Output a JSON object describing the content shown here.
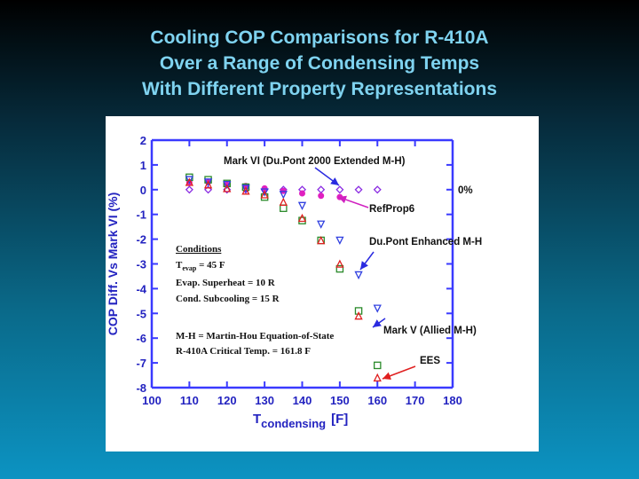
{
  "slide": {
    "title_lines": [
      "Cooling COP Comparisons for R-410A",
      "Over a Range of Condensing Temps",
      "With Different Property Representations"
    ]
  },
  "colors": {
    "title": "#7fd3f0",
    "axis": "#3a3aff",
    "tick_label": "#2323c0",
    "diamond": "#8a2be2",
    "refprop": "#e020c0",
    "mark_v_triangle": "#3040e0",
    "square": "#2a8a2a",
    "ees_triangle": "#e02020",
    "arrow_blue": "#2a2ae0",
    "arrow_magenta": "#d020c0",
    "arrow_red": "#e02020"
  },
  "chart_data": {
    "type": "scatter",
    "title": "",
    "xlabel_main": "T",
    "xlabel_sub": "condensing",
    "xlabel_unit": "[F]",
    "ylabel": "COP Diff. Vs Mark VI (%)",
    "xlim": [
      100,
      180
    ],
    "ylim": [
      -8,
      2
    ],
    "x_ticks": [
      100,
      110,
      120,
      130,
      140,
      150,
      160,
      170,
      180
    ],
    "y_ticks": [
      2,
      1,
      0,
      -1,
      -2,
      -3,
      -4,
      -5,
      -6,
      -7,
      -8
    ],
    "grid": false,
    "series": [
      {
        "name": "Mark VI (Du.Pont 2000 Extended M-H)",
        "marker": "diamond",
        "x": [
          110,
          115,
          120,
          125,
          130,
          135,
          140,
          145,
          150,
          155,
          160
        ],
        "y": [
          0,
          0,
          0,
          0,
          0,
          0,
          0,
          0,
          0,
          0,
          0
        ]
      },
      {
        "name": "RefProp6",
        "marker": "circle",
        "x": [
          110,
          115,
          120,
          125,
          130,
          135,
          140,
          145,
          150
        ],
        "y": [
          0.3,
          0.3,
          0.2,
          0.15,
          0.05,
          -0.05,
          -0.15,
          -0.25,
          -0.3
        ]
      },
      {
        "name": "Du.Pont Enhanced M-H",
        "marker": "square",
        "x": [
          110,
          115,
          120,
          125,
          130,
          135,
          140,
          145,
          150,
          155,
          160
        ],
        "y": [
          0.5,
          0.4,
          0.25,
          0.1,
          -0.3,
          -0.75,
          -1.25,
          -2.05,
          -3.2,
          -4.9,
          -7.1
        ]
      },
      {
        "name": "Mark V (Allied M-H)",
        "marker": "triangle-down",
        "x": [
          110,
          115,
          120,
          125,
          130,
          135,
          140,
          145,
          150,
          155,
          160
        ],
        "y": [
          0.4,
          0.3,
          0.2,
          0.05,
          -0.1,
          -0.2,
          -0.65,
          -1.4,
          -2.05,
          -3.45,
          -4.8
        ]
      },
      {
        "name": "EES",
        "marker": "triangle-up",
        "x": [
          110,
          115,
          120,
          125,
          130,
          135,
          140,
          145,
          150,
          155,
          160
        ],
        "y": [
          0.3,
          0.2,
          0.05,
          -0.05,
          -0.2,
          -0.5,
          -1.15,
          -2.05,
          -3.0,
          -5.1,
          -7.6
        ]
      }
    ],
    "annotations": [
      {
        "text": "Mark VI (Du.Pont 2000 Extended M-H)",
        "bold": true
      },
      {
        "text": "0%",
        "bold": true
      },
      {
        "text": "RefProp6",
        "bold": true
      },
      {
        "text": "Du.Pont Enhanced M-H",
        "bold": true
      },
      {
        "text": "Mark V (Allied M-H)",
        "bold": true
      },
      {
        "text": "EES",
        "bold": true
      }
    ],
    "conditions": {
      "heading": "Conditions",
      "t_evap_main": "T",
      "t_evap_sub": "evap",
      "t_evap_rest": " = 45 F",
      "superheat": "Evap. Superheat = 10 R",
      "subcooling": "Cond. Subcooling = 15 R",
      "mh": "M-H = Martin-Hou Equation-of-State",
      "critical": "R-410A Critical Temp. = 161.8 F"
    }
  }
}
